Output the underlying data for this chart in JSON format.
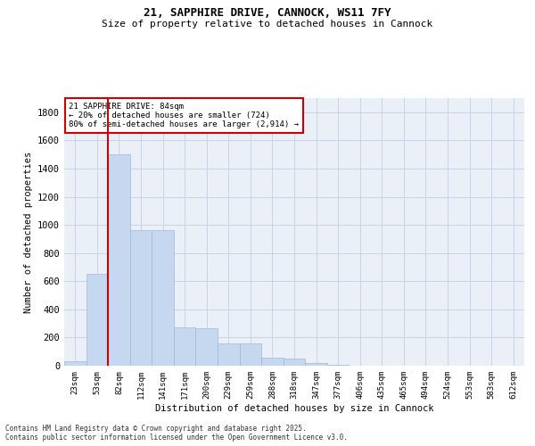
{
  "title_line1": "21, SAPPHIRE DRIVE, CANNOCK, WS11 7FY",
  "title_line2": "Size of property relative to detached houses in Cannock",
  "xlabel": "Distribution of detached houses by size in Cannock",
  "ylabel": "Number of detached properties",
  "categories": [
    "23sqm",
    "53sqm",
    "82sqm",
    "112sqm",
    "141sqm",
    "171sqm",
    "200sqm",
    "229sqm",
    "259sqm",
    "288sqm",
    "318sqm",
    "347sqm",
    "377sqm",
    "406sqm",
    "435sqm",
    "465sqm",
    "494sqm",
    "524sqm",
    "553sqm",
    "583sqm",
    "612sqm"
  ],
  "values": [
    30,
    650,
    1500,
    960,
    960,
    270,
    265,
    160,
    160,
    55,
    50,
    20,
    5,
    3,
    2,
    1,
    0,
    0,
    0,
    0,
    0
  ],
  "bar_color": "#c5d8f0",
  "bar_edge_color": "#a0b8d8",
  "grid_color": "#c8d4e8",
  "background_color": "#eaeff8",
  "vline_color": "#cc0000",
  "annotation_text": "21 SAPPHIRE DRIVE: 84sqm\n← 20% of detached houses are smaller (724)\n80% of semi-detached houses are larger (2,914) →",
  "annotation_box_color": "#cc0000",
  "ylim": [
    0,
    1900
  ],
  "yticks": [
    0,
    200,
    400,
    600,
    800,
    1000,
    1200,
    1400,
    1600,
    1800
  ],
  "footnote_line1": "Contains HM Land Registry data © Crown copyright and database right 2025.",
  "footnote_line2": "Contains public sector information licensed under the Open Government Licence v3.0."
}
